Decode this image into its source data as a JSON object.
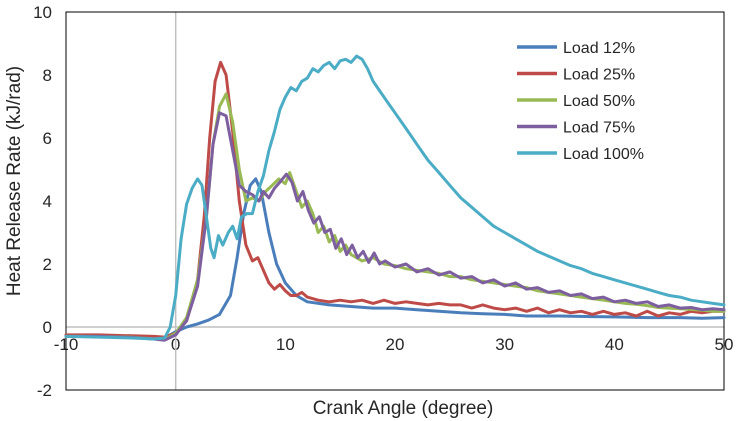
{
  "chart_data": {
    "type": "line",
    "title": "",
    "xlabel": "Crank Angle (degree)",
    "ylabel": "Heat Release Rate (kJ/rad)",
    "xlim": [
      -10,
      50
    ],
    "ylim": [
      -2,
      10
    ],
    "xticks": [
      -10,
      0,
      10,
      20,
      30,
      40,
      50
    ],
    "yticks": [
      -2,
      0,
      2,
      4,
      6,
      8,
      10
    ],
    "grid": false,
    "legend_position": "top-right",
    "series": [
      {
        "name": "Load 12%",
        "color": "#4a7ebb",
        "points": [
          [
            -10,
            -0.3
          ],
          [
            -7,
            -0.3
          ],
          [
            -4,
            -0.32
          ],
          [
            -2,
            -0.38
          ],
          [
            -1,
            -0.35
          ],
          [
            0,
            -0.15
          ],
          [
            1,
            0.0
          ],
          [
            2,
            0.1
          ],
          [
            3,
            0.22
          ],
          [
            4,
            0.4
          ],
          [
            5,
            1.0
          ],
          [
            5.6,
            2.2
          ],
          [
            6.2,
            3.6
          ],
          [
            6.8,
            4.5
          ],
          [
            7.3,
            4.7
          ],
          [
            7.8,
            4.3
          ],
          [
            8.5,
            3.0
          ],
          [
            9.2,
            2.0
          ],
          [
            10,
            1.4
          ],
          [
            11,
            1.0
          ],
          [
            12,
            0.8
          ],
          [
            14,
            0.7
          ],
          [
            16,
            0.65
          ],
          [
            18,
            0.6
          ],
          [
            20,
            0.6
          ],
          [
            22,
            0.55
          ],
          [
            24,
            0.5
          ],
          [
            26,
            0.45
          ],
          [
            28,
            0.42
          ],
          [
            30,
            0.4
          ],
          [
            32,
            0.35
          ],
          [
            35,
            0.35
          ],
          [
            38,
            0.33
          ],
          [
            40,
            0.32
          ],
          [
            43,
            0.3
          ],
          [
            46,
            0.3
          ],
          [
            48,
            0.28
          ],
          [
            50,
            0.3
          ]
        ]
      },
      {
        "name": "Load 25%",
        "color": "#be4b48",
        "points": [
          [
            -10,
            -0.25
          ],
          [
            -7,
            -0.25
          ],
          [
            -4,
            -0.28
          ],
          [
            -2,
            -0.3
          ],
          [
            -1,
            -0.32
          ],
          [
            0,
            -0.2
          ],
          [
            1,
            0.2
          ],
          [
            2,
            1.5
          ],
          [
            2.6,
            3.5
          ],
          [
            3.1,
            6.0
          ],
          [
            3.6,
            7.8
          ],
          [
            4.1,
            8.4
          ],
          [
            4.6,
            8.0
          ],
          [
            5.2,
            6.2
          ],
          [
            5.8,
            4.0
          ],
          [
            6.4,
            2.6
          ],
          [
            7,
            2.1
          ],
          [
            7.5,
            2.2
          ],
          [
            8,
            1.8
          ],
          [
            8.5,
            1.4
          ],
          [
            9,
            1.2
          ],
          [
            9.5,
            1.35
          ],
          [
            10,
            1.15
          ],
          [
            10.5,
            1.0
          ],
          [
            11,
            1.0
          ],
          [
            11.5,
            1.1
          ],
          [
            12,
            0.95
          ],
          [
            13,
            0.85
          ],
          [
            14,
            0.8
          ],
          [
            15,
            0.85
          ],
          [
            16,
            0.8
          ],
          [
            17,
            0.85
          ],
          [
            18,
            0.75
          ],
          [
            19,
            0.85
          ],
          [
            20,
            0.75
          ],
          [
            21,
            0.8
          ],
          [
            22,
            0.75
          ],
          [
            23,
            0.7
          ],
          [
            24,
            0.75
          ],
          [
            25,
            0.7
          ],
          [
            26,
            0.7
          ],
          [
            27,
            0.6
          ],
          [
            28,
            0.7
          ],
          [
            29,
            0.6
          ],
          [
            30,
            0.55
          ],
          [
            31,
            0.6
          ],
          [
            32,
            0.5
          ],
          [
            33,
            0.6
          ],
          [
            34,
            0.45
          ],
          [
            35,
            0.55
          ],
          [
            36,
            0.45
          ],
          [
            37,
            0.5
          ],
          [
            38,
            0.4
          ],
          [
            39,
            0.5
          ],
          [
            40,
            0.4
          ],
          [
            41,
            0.45
          ],
          [
            42,
            0.35
          ],
          [
            43,
            0.5
          ],
          [
            44,
            0.35
          ],
          [
            45,
            0.45
          ],
          [
            46,
            0.4
          ],
          [
            47,
            0.5
          ],
          [
            48,
            0.45
          ],
          [
            49,
            0.5
          ],
          [
            50,
            0.5
          ]
        ]
      },
      {
        "name": "Load 50%",
        "color": "#98b954",
        "points": [
          [
            -10,
            -0.3
          ],
          [
            -7,
            -0.3
          ],
          [
            -4,
            -0.32
          ],
          [
            -2,
            -0.38
          ],
          [
            -1,
            -0.4
          ],
          [
            0,
            -0.2
          ],
          [
            1,
            0.3
          ],
          [
            2,
            1.5
          ],
          [
            2.8,
            3.5
          ],
          [
            3.4,
            5.8
          ],
          [
            4,
            7.0
          ],
          [
            4.6,
            7.4
          ],
          [
            5.2,
            6.5
          ],
          [
            5.8,
            5.0
          ],
          [
            6.4,
            4.0
          ],
          [
            7,
            4.1
          ],
          [
            7.6,
            4.0
          ],
          [
            8.2,
            4.3
          ],
          [
            8.8,
            4.5
          ],
          [
            9.4,
            4.7
          ],
          [
            10,
            4.55
          ],
          [
            10.4,
            4.9
          ],
          [
            10.9,
            4.4
          ],
          [
            11.5,
            3.8
          ],
          [
            12,
            4.0
          ],
          [
            12.5,
            3.6
          ],
          [
            13,
            3.0
          ],
          [
            13.5,
            3.2
          ],
          [
            14,
            2.7
          ],
          [
            14.5,
            2.9
          ],
          [
            15,
            2.4
          ],
          [
            15.5,
            2.6
          ],
          [
            16,
            2.3
          ],
          [
            17,
            2.1
          ],
          [
            18,
            2.2
          ],
          [
            19,
            2.0
          ],
          [
            20,
            1.95
          ],
          [
            21,
            1.85
          ],
          [
            22,
            1.8
          ],
          [
            23,
            1.75
          ],
          [
            24,
            1.7
          ],
          [
            25,
            1.6
          ],
          [
            26,
            1.6
          ],
          [
            27,
            1.5
          ],
          [
            28,
            1.45
          ],
          [
            29,
            1.4
          ],
          [
            30,
            1.35
          ],
          [
            31,
            1.3
          ],
          [
            32,
            1.25
          ],
          [
            33,
            1.15
          ],
          [
            34,
            1.1
          ],
          [
            35,
            1.05
          ],
          [
            36,
            1.0
          ],
          [
            37,
            0.95
          ],
          [
            38,
            0.9
          ],
          [
            39,
            0.85
          ],
          [
            40,
            0.8
          ],
          [
            41,
            0.75
          ],
          [
            42,
            0.72
          ],
          [
            43,
            0.68
          ],
          [
            44,
            0.62
          ],
          [
            45,
            0.6
          ],
          [
            46,
            0.58
          ],
          [
            47,
            0.56
          ],
          [
            48,
            0.53
          ],
          [
            49,
            0.5
          ],
          [
            50,
            0.5
          ]
        ]
      },
      {
        "name": "Load 75%",
        "color": "#7d5fa0",
        "points": [
          [
            -10,
            -0.3
          ],
          [
            -7,
            -0.3
          ],
          [
            -4,
            -0.33
          ],
          [
            -2,
            -0.38
          ],
          [
            -1,
            -0.42
          ],
          [
            0,
            -0.25
          ],
          [
            1,
            0.2
          ],
          [
            2,
            1.3
          ],
          [
            2.8,
            3.5
          ],
          [
            3.4,
            5.8
          ],
          [
            4,
            6.8
          ],
          [
            4.6,
            6.7
          ],
          [
            5.2,
            5.6
          ],
          [
            5.8,
            4.5
          ],
          [
            6.4,
            4.3
          ],
          [
            7,
            4.2
          ],
          [
            7.6,
            4.0
          ],
          [
            8,
            4.3
          ],
          [
            8.5,
            4.1
          ],
          [
            9,
            4.4
          ],
          [
            9.5,
            4.6
          ],
          [
            10.1,
            4.85
          ],
          [
            10.6,
            4.6
          ],
          [
            11.1,
            4.0
          ],
          [
            11.6,
            4.3
          ],
          [
            12.1,
            3.7
          ],
          [
            12.6,
            3.3
          ],
          [
            13.1,
            3.5
          ],
          [
            13.6,
            3.0
          ],
          [
            14.1,
            3.1
          ],
          [
            14.6,
            2.5
          ],
          [
            15.1,
            2.8
          ],
          [
            15.6,
            2.3
          ],
          [
            16.1,
            2.6
          ],
          [
            16.6,
            2.2
          ],
          [
            17.1,
            2.4
          ],
          [
            17.6,
            2.05
          ],
          [
            18.1,
            2.35
          ],
          [
            18.6,
            2.0
          ],
          [
            19.1,
            2.1
          ],
          [
            20,
            1.9
          ],
          [
            21,
            2.0
          ],
          [
            22,
            1.75
          ],
          [
            23,
            1.85
          ],
          [
            24,
            1.65
          ],
          [
            25,
            1.75
          ],
          [
            26,
            1.55
          ],
          [
            27,
            1.6
          ],
          [
            28,
            1.4
          ],
          [
            29,
            1.5
          ],
          [
            30,
            1.3
          ],
          [
            31,
            1.4
          ],
          [
            32,
            1.2
          ],
          [
            33,
            1.25
          ],
          [
            34,
            1.1
          ],
          [
            35,
            1.15
          ],
          [
            36,
            1.0
          ],
          [
            37,
            1.05
          ],
          [
            38,
            0.9
          ],
          [
            39,
            0.95
          ],
          [
            40,
            0.8
          ],
          [
            41,
            0.85
          ],
          [
            42,
            0.75
          ],
          [
            43,
            0.8
          ],
          [
            44,
            0.65
          ],
          [
            45,
            0.7
          ],
          [
            46,
            0.6
          ],
          [
            47,
            0.62
          ],
          [
            48,
            0.55
          ],
          [
            49,
            0.58
          ],
          [
            50,
            0.55
          ]
        ]
      },
      {
        "name": "Load 100%",
        "color": "#4bacc6",
        "points": [
          [
            -10,
            -0.3
          ],
          [
            -7,
            -0.32
          ],
          [
            -4,
            -0.35
          ],
          [
            -2,
            -0.38
          ],
          [
            -1,
            -0.35
          ],
          [
            -0.5,
            0.0
          ],
          [
            0,
            1.0
          ],
          [
            0.5,
            2.8
          ],
          [
            1,
            3.9
          ],
          [
            1.5,
            4.4
          ],
          [
            2,
            4.7
          ],
          [
            2.4,
            4.5
          ],
          [
            2.8,
            3.5
          ],
          [
            3.2,
            2.5
          ],
          [
            3.5,
            2.2
          ],
          [
            3.9,
            2.9
          ],
          [
            4.3,
            2.6
          ],
          [
            4.8,
            3.0
          ],
          [
            5.2,
            3.2
          ],
          [
            5.6,
            2.8
          ],
          [
            6,
            3.5
          ],
          [
            6.5,
            3.6
          ],
          [
            7,
            3.6
          ],
          [
            7.5,
            4.3
          ],
          [
            8,
            4.8
          ],
          [
            8.5,
            5.6
          ],
          [
            9,
            6.2
          ],
          [
            9.5,
            6.9
          ],
          [
            10,
            7.3
          ],
          [
            10.5,
            7.6
          ],
          [
            11,
            7.5
          ],
          [
            11.5,
            7.8
          ],
          [
            12,
            7.9
          ],
          [
            12.5,
            8.2
          ],
          [
            13,
            8.1
          ],
          [
            13.5,
            8.3
          ],
          [
            14,
            8.4
          ],
          [
            14.5,
            8.2
          ],
          [
            15,
            8.45
          ],
          [
            15.5,
            8.5
          ],
          [
            16,
            8.4
          ],
          [
            16.5,
            8.6
          ],
          [
            17,
            8.5
          ],
          [
            17.5,
            8.2
          ],
          [
            18,
            7.8
          ],
          [
            19,
            7.3
          ],
          [
            20,
            6.8
          ],
          [
            21,
            6.3
          ],
          [
            22,
            5.8
          ],
          [
            23,
            5.3
          ],
          [
            24,
            4.9
          ],
          [
            25,
            4.5
          ],
          [
            26,
            4.1
          ],
          [
            27,
            3.8
          ],
          [
            28,
            3.5
          ],
          [
            29,
            3.2
          ],
          [
            30,
            3.0
          ],
          [
            31,
            2.8
          ],
          [
            32,
            2.6
          ],
          [
            33,
            2.4
          ],
          [
            34,
            2.25
          ],
          [
            35,
            2.1
          ],
          [
            36,
            1.95
          ],
          [
            37,
            1.85
          ],
          [
            38,
            1.7
          ],
          [
            39,
            1.6
          ],
          [
            40,
            1.5
          ],
          [
            41,
            1.4
          ],
          [
            42,
            1.3
          ],
          [
            43,
            1.2
          ],
          [
            44,
            1.1
          ],
          [
            45,
            1.0
          ],
          [
            46,
            0.95
          ],
          [
            47,
            0.85
          ],
          [
            48,
            0.8
          ],
          [
            49,
            0.75
          ],
          [
            50,
            0.7
          ]
        ]
      }
    ]
  }
}
